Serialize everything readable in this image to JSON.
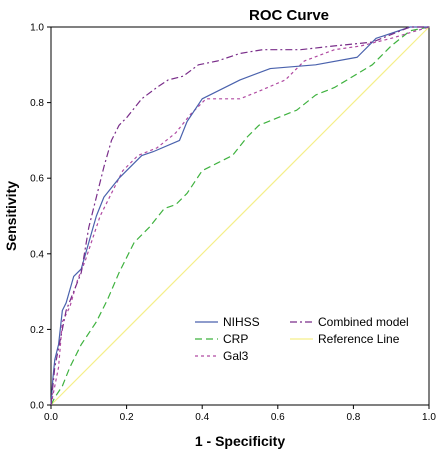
{
  "chart_data": {
    "type": "line",
    "title": "ROC Curve",
    "xlabel": "1 - Specificity",
    "ylabel": "Sensitivity",
    "xlim": [
      0,
      1
    ],
    "ylim": [
      0,
      1
    ],
    "xticks": [
      "0.0",
      "0.2",
      "0.4",
      "0.6",
      "0.8",
      "1.0"
    ],
    "yticks": [
      "0.0",
      "0.2",
      "0.4",
      "0.6",
      "0.8",
      "1.0"
    ],
    "grid": false,
    "legend_position": "bottom-right",
    "series": [
      {
        "name": "NIHSS",
        "color": "#4a62ad",
        "dash": "solid",
        "points": [
          [
            0,
            0
          ],
          [
            0.005,
            0.07
          ],
          [
            0.01,
            0.12
          ],
          [
            0.02,
            0.16
          ],
          [
            0.03,
            0.25
          ],
          [
            0.04,
            0.27
          ],
          [
            0.06,
            0.34
          ],
          [
            0.08,
            0.36
          ],
          [
            0.1,
            0.43
          ],
          [
            0.12,
            0.5
          ],
          [
            0.14,
            0.55
          ],
          [
            0.18,
            0.6
          ],
          [
            0.24,
            0.66
          ],
          [
            0.27,
            0.67
          ],
          [
            0.34,
            0.7
          ],
          [
            0.36,
            0.75
          ],
          [
            0.4,
            0.81
          ],
          [
            0.5,
            0.86
          ],
          [
            0.58,
            0.89
          ],
          [
            0.7,
            0.9
          ],
          [
            0.81,
            0.92
          ],
          [
            0.86,
            0.97
          ],
          [
            0.95,
            1.0
          ],
          [
            1.0,
            1.0
          ]
        ]
      },
      {
        "name": "CRP",
        "color": "#3fb23f",
        "dash": "long-dash",
        "points": [
          [
            0,
            0
          ],
          [
            0.01,
            0.02
          ],
          [
            0.03,
            0.05
          ],
          [
            0.05,
            0.1
          ],
          [
            0.08,
            0.16
          ],
          [
            0.1,
            0.19
          ],
          [
            0.12,
            0.22
          ],
          [
            0.15,
            0.28
          ],
          [
            0.18,
            0.35
          ],
          [
            0.22,
            0.43
          ],
          [
            0.26,
            0.47
          ],
          [
            0.3,
            0.52
          ],
          [
            0.33,
            0.53
          ],
          [
            0.36,
            0.56
          ],
          [
            0.4,
            0.62
          ],
          [
            0.44,
            0.64
          ],
          [
            0.48,
            0.66
          ],
          [
            0.52,
            0.71
          ],
          [
            0.55,
            0.74
          ],
          [
            0.6,
            0.76
          ],
          [
            0.65,
            0.78
          ],
          [
            0.7,
            0.82
          ],
          [
            0.75,
            0.84
          ],
          [
            0.8,
            0.87
          ],
          [
            0.85,
            0.9
          ],
          [
            0.9,
            0.95
          ],
          [
            0.95,
            0.99
          ],
          [
            1.0,
            1.0
          ]
        ]
      },
      {
        "name": "Gal3",
        "color": "#b04aa2",
        "dash": "short-dash",
        "points": [
          [
            0,
            0
          ],
          [
            0.01,
            0.05
          ],
          [
            0.02,
            0.1
          ],
          [
            0.03,
            0.22
          ],
          [
            0.05,
            0.26
          ],
          [
            0.07,
            0.33
          ],
          [
            0.09,
            0.38
          ],
          [
            0.11,
            0.44
          ],
          [
            0.13,
            0.5
          ],
          [
            0.16,
            0.56
          ],
          [
            0.19,
            0.62
          ],
          [
            0.23,
            0.66
          ],
          [
            0.28,
            0.68
          ],
          [
            0.33,
            0.72
          ],
          [
            0.37,
            0.77
          ],
          [
            0.41,
            0.81
          ],
          [
            0.5,
            0.81
          ],
          [
            0.55,
            0.83
          ],
          [
            0.62,
            0.86
          ],
          [
            0.67,
            0.91
          ],
          [
            0.75,
            0.94
          ],
          [
            0.82,
            0.95
          ],
          [
            0.9,
            0.97
          ],
          [
            1.0,
            1.0
          ]
        ]
      },
      {
        "name": "Combined model",
        "color": "#7a2e8a",
        "dash": "dash-dot",
        "points": [
          [
            0,
            0
          ],
          [
            0.01,
            0.1
          ],
          [
            0.02,
            0.15
          ],
          [
            0.03,
            0.2
          ],
          [
            0.04,
            0.25
          ],
          [
            0.06,
            0.3
          ],
          [
            0.08,
            0.35
          ],
          [
            0.1,
            0.47
          ],
          [
            0.12,
            0.55
          ],
          [
            0.14,
            0.63
          ],
          [
            0.16,
            0.7
          ],
          [
            0.18,
            0.74
          ],
          [
            0.2,
            0.76
          ],
          [
            0.24,
            0.81
          ],
          [
            0.28,
            0.84
          ],
          [
            0.31,
            0.86
          ],
          [
            0.35,
            0.87
          ],
          [
            0.39,
            0.9
          ],
          [
            0.44,
            0.91
          ],
          [
            0.5,
            0.93
          ],
          [
            0.56,
            0.94
          ],
          [
            0.66,
            0.94
          ],
          [
            0.75,
            0.95
          ],
          [
            0.85,
            0.96
          ],
          [
            0.9,
            0.98
          ],
          [
            0.95,
            1.0
          ],
          [
            1.0,
            1.0
          ]
        ]
      },
      {
        "name": "Reference Line",
        "color": "#f5ef8a",
        "dash": "solid",
        "points": [
          [
            0,
            0
          ],
          [
            1,
            1
          ]
        ]
      }
    ]
  }
}
